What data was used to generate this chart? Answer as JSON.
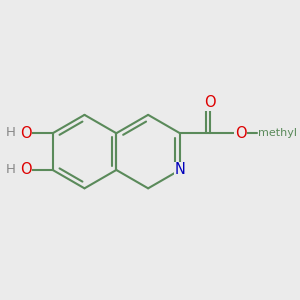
{
  "background_color": "#ebebeb",
  "bond_color": "#5a8a5a",
  "bond_width": 1.5,
  "atom_colors": {
    "O": "#dd0000",
    "N": "#0000bb",
    "C": "#5a8a5a",
    "H": "#888888"
  },
  "font_size_atom": 10.5,
  "font_size_H": 9.5,
  "font_size_methyl": 9.5
}
